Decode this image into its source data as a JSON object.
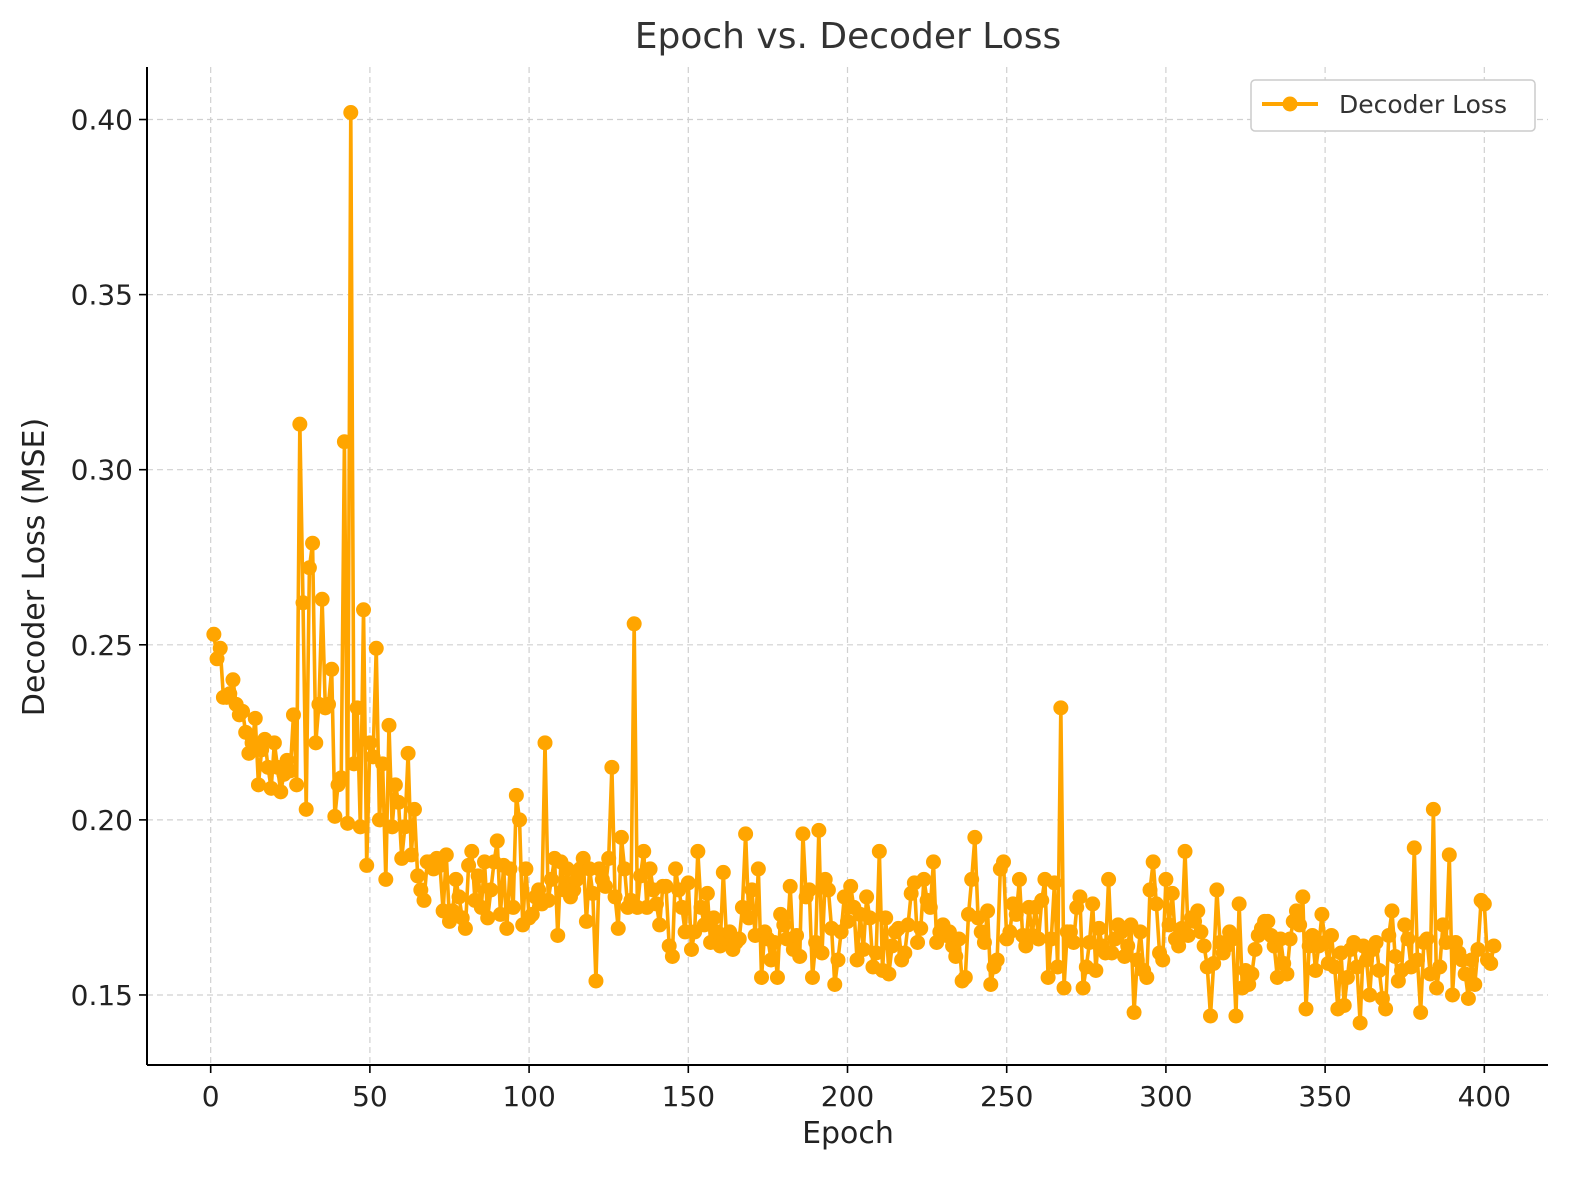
{
  "chart_data": {
    "type": "line",
    "title": "Epoch vs. Decoder Loss",
    "xlabel": "Epoch",
    "ylabel": "Decoder Loss (MSE)",
    "xlim": [
      -20,
      420
    ],
    "ylim": [
      0.13,
      0.415
    ],
    "xticks": [
      0,
      50,
      100,
      150,
      200,
      250,
      300,
      350,
      400
    ],
    "yticks": [
      0.15,
      0.2,
      0.25,
      0.3,
      0.35,
      0.4
    ],
    "ytick_labels": [
      "0.15",
      "0.20",
      "0.25",
      "0.30",
      "0.35",
      "0.40"
    ],
    "grid": true,
    "legend_position": "top-right",
    "colors": {
      "series": "#ffa500"
    },
    "series": [
      {
        "name": "Decoder Loss",
        "marker": "circle",
        "x_start": 1,
        "x_step": 1,
        "values": [
          0.253,
          0.246,
          0.249,
          0.235,
          0.235,
          0.236,
          0.24,
          0.233,
          0.23,
          0.231,
          0.225,
          0.219,
          0.222,
          0.229,
          0.21,
          0.22,
          0.223,
          0.215,
          0.209,
          0.222,
          0.215,
          0.208,
          0.213,
          0.217,
          0.214,
          0.23,
          0.21,
          0.313,
          0.262,
          0.203,
          0.272,
          0.279,
          0.222,
          0.233,
          0.263,
          0.232,
          0.233,
          0.243,
          0.201,
          0.21,
          0.212,
          0.308,
          0.199,
          0.402,
          0.216,
          0.232,
          0.198,
          0.26,
          0.187,
          0.222,
          0.218,
          0.249,
          0.2,
          0.216,
          0.183,
          0.227,
          0.198,
          0.21,
          0.205,
          0.189,
          0.198,
          0.219,
          0.19,
          0.203,
          0.184,
          0.18,
          0.177,
          0.188,
          0.188,
          0.186,
          0.189,
          0.187,
          0.174,
          0.19,
          0.171,
          0.174,
          0.183,
          0.178,
          0.172,
          0.169,
          0.187,
          0.191,
          0.177,
          0.184,
          0.175,
          0.188,
          0.172,
          0.18,
          0.188,
          0.194,
          0.173,
          0.187,
          0.169,
          0.186,
          0.175,
          0.207,
          0.2,
          0.17,
          0.186,
          0.172,
          0.173,
          0.178,
          0.18,
          0.176,
          0.222,
          0.177,
          0.183,
          0.189,
          0.167,
          0.188,
          0.18,
          0.186,
          0.178,
          0.18,
          0.183,
          0.186,
          0.189,
          0.171,
          0.186,
          0.179,
          0.154,
          0.186,
          0.183,
          0.181,
          0.189,
          0.215,
          0.178,
          0.169,
          0.195,
          0.186,
          0.175,
          0.177,
          0.256,
          0.175,
          0.184,
          0.191,
          0.175,
          0.186,
          0.18,
          0.176,
          0.17,
          0.181,
          0.181,
          0.164,
          0.161,
          0.186,
          0.18,
          0.175,
          0.168,
          0.182,
          0.163,
          0.168,
          0.191,
          0.175,
          0.17,
          0.179,
          0.165,
          0.172,
          0.168,
          0.164,
          0.185,
          0.166,
          0.168,
          0.163,
          0.165,
          0.166,
          0.175,
          0.196,
          0.172,
          0.18,
          0.167,
          0.186,
          0.155,
          0.168,
          0.166,
          0.16,
          0.165,
          0.155,
          0.173,
          0.17,
          0.166,
          0.181,
          0.163,
          0.167,
          0.161,
          0.196,
          0.178,
          0.18,
          0.155,
          0.165,
          0.197,
          0.162,
          0.183,
          0.18,
          0.169,
          0.153,
          0.16,
          0.168,
          0.178,
          0.171,
          0.181,
          0.175,
          0.16,
          0.173,
          0.163,
          0.178,
          0.172,
          0.158,
          0.162,
          0.191,
          0.157,
          0.172,
          0.156,
          0.164,
          0.168,
          0.169,
          0.16,
          0.162,
          0.17,
          0.179,
          0.182,
          0.165,
          0.169,
          0.183,
          0.177,
          0.175,
          0.188,
          0.165,
          0.168,
          0.17,
          0.167,
          0.168,
          0.164,
          0.161,
          0.166,
          0.154,
          0.155,
          0.173,
          0.183,
          0.195,
          0.172,
          0.168,
          0.165,
          0.174,
          0.153,
          0.158,
          0.16,
          0.186,
          0.188,
          0.166,
          0.168,
          0.176,
          0.173,
          0.183,
          0.167,
          0.164,
          0.175,
          0.167,
          0.175,
          0.166,
          0.177,
          0.183,
          0.155,
          0.166,
          0.182,
          0.158,
          0.232,
          0.152,
          0.168,
          0.168,
          0.165,
          0.175,
          0.178,
          0.152,
          0.158,
          0.165,
          0.176,
          0.157,
          0.169,
          0.164,
          0.162,
          0.183,
          0.162,
          0.166,
          0.17,
          0.168,
          0.161,
          0.164,
          0.17,
          0.145,
          0.16,
          0.168,
          0.157,
          0.155,
          0.18,
          0.188,
          0.176,
          0.162,
          0.16,
          0.183,
          0.17,
          0.179,
          0.166,
          0.164,
          0.169,
          0.191,
          0.167,
          0.172,
          0.171,
          0.174,
          0.168,
          0.164,
          0.158,
          0.144,
          0.159,
          0.18,
          0.165,
          0.162,
          0.164,
          0.168,
          0.166,
          0.144,
          0.176,
          0.152,
          0.157,
          0.153,
          0.156,
          0.163,
          0.167,
          0.169,
          0.171,
          0.171,
          0.167,
          0.164,
          0.155,
          0.166,
          0.159,
          0.156,
          0.166,
          0.171,
          0.174,
          0.17,
          0.178,
          0.146,
          0.164,
          0.167,
          0.157,
          0.164,
          0.173,
          0.165,
          0.159,
          0.167,
          0.158,
          0.146,
          0.162,
          0.147,
          0.155,
          0.163,
          0.165,
          0.158,
          0.142,
          0.164,
          0.16,
          0.15,
          0.163,
          0.165,
          0.157,
          0.149,
          0.146,
          0.167,
          0.174,
          0.161,
          0.154,
          0.157,
          0.17,
          0.166,
          0.158,
          0.192,
          0.16,
          0.145,
          0.165,
          0.166,
          0.156,
          0.203,
          0.152,
          0.158,
          0.17,
          0.165,
          0.19,
          0.15,
          0.165,
          0.162,
          0.16,
          0.156,
          0.149,
          0.16,
          0.153,
          0.163,
          0.177,
          0.176,
          0.16,
          0.159,
          0.164
        ]
      }
    ]
  }
}
